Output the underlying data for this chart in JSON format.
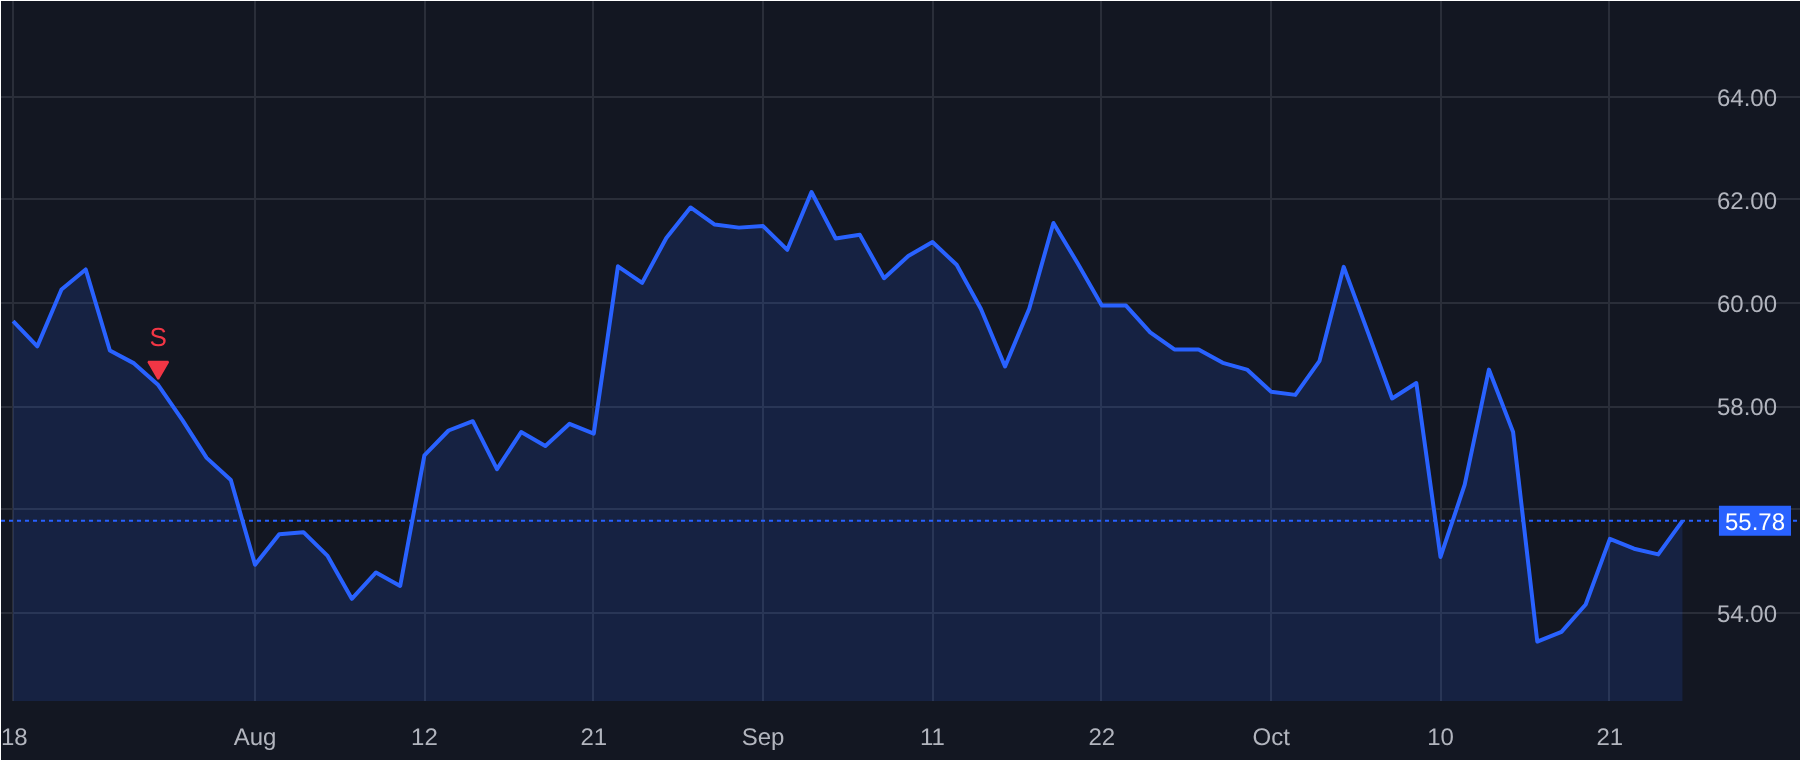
{
  "chart_data": {
    "type": "area",
    "categories": [
      "18",
      null,
      null,
      null,
      null,
      null,
      null,
      null,
      null,
      null,
      "Aug",
      null,
      null,
      null,
      null,
      null,
      null,
      "12",
      null,
      null,
      null,
      null,
      null,
      null,
      "21",
      null,
      null,
      null,
      null,
      null,
      null,
      "Sep",
      null,
      null,
      null,
      null,
      null,
      null,
      "11",
      null,
      null,
      null,
      null,
      null,
      null,
      "22",
      null,
      null,
      null,
      null,
      null,
      null,
      "Oct",
      null,
      null,
      null,
      null,
      null,
      null,
      "10",
      null,
      null,
      null,
      null,
      null,
      null,
      "21",
      null,
      null,
      null
    ],
    "series": [
      {
        "color": "#2962ff",
        "values": [
          59.65,
          59.16,
          60.26,
          60.65,
          59.08,
          58.83,
          58.41,
          57.73,
          57.0,
          56.57,
          54.93,
          55.52,
          55.56,
          55.1,
          54.27,
          54.78,
          54.52,
          57.05,
          57.53,
          57.71,
          56.78,
          57.5,
          57.23,
          57.66,
          57.47,
          60.71,
          60.39,
          61.26,
          61.85,
          61.52,
          61.46,
          61.49,
          61.03,
          62.15,
          61.25,
          61.32,
          60.48,
          60.91,
          61.18,
          60.74,
          59.89,
          58.77,
          59.89,
          61.55,
          60.77,
          59.95,
          59.95,
          59.43,
          59.1,
          59.1,
          58.84,
          58.71,
          58.28,
          58.22,
          58.88,
          60.7,
          59.43,
          58.15,
          58.45,
          55.08,
          56.48,
          58.71,
          57.5,
          53.44,
          53.63,
          54.16,
          55.43,
          55.24,
          55.13,
          55.78
        ]
      },
      {
        "type": "scatter",
        "marker": "triangle",
        "color": "#f23645",
        "values": [
          null,
          null,
          null,
          null,
          null,
          null,
          58.75,
          null,
          null,
          null,
          null,
          null,
          null,
          null,
          null,
          null,
          null,
          null,
          null,
          null,
          null,
          null,
          null,
          null,
          null,
          null,
          null,
          null,
          null,
          null,
          null,
          null,
          null,
          null,
          null,
          null,
          null,
          null,
          null,
          null,
          null,
          null,
          null,
          null,
          null,
          null,
          null,
          null,
          null,
          null,
          null,
          null,
          null,
          null,
          null,
          null,
          null,
          null,
          null,
          null,
          null,
          null,
          null,
          null,
          null,
          null,
          null,
          null,
          null,
          null
        ]
      }
    ],
    "annotations": [
      "S"
    ],
    "ylim": [
      52.29,
      65.85
    ],
    "yticks": [
      {
        "value": 54,
        "label": "54.00"
      },
      {
        "value": 56,
        "label": null
      },
      {
        "value": 58,
        "label": "58.00"
      },
      {
        "value": 60,
        "label": "60.00"
      },
      {
        "value": 62,
        "label": "62.00"
      },
      {
        "value": 64,
        "label": "64.00"
      }
    ],
    "ref_lines": [
      {
        "axis": "y",
        "value": 55.78,
        "label": "55.78",
        "color": "#2962ff",
        "line_style": "dotted"
      }
    ],
    "grid": true
  }
}
